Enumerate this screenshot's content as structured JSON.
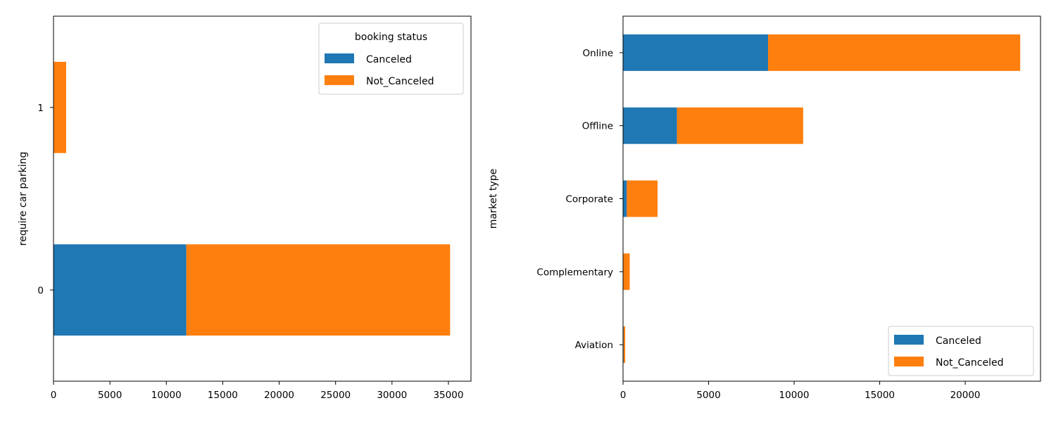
{
  "colors": {
    "Canceled": "#1f77b4",
    "Not_Canceled": "#ff7f0e"
  },
  "chart_data": [
    {
      "type": "bar",
      "orientation": "horizontal",
      "stacked": true,
      "categories": [
        "0",
        "1"
      ],
      "series": [
        {
          "name": "Canceled",
          "values": [
            11771,
            0
          ]
        },
        {
          "name": "Not_Canceled",
          "values": [
            23380,
            1124
          ]
        }
      ],
      "title": "",
      "xlabel": "",
      "ylabel": "require car parking",
      "xlim": [
        0,
        37000
      ],
      "xticks": [
        0,
        5000,
        10000,
        15000,
        20000,
        25000,
        30000,
        35000
      ],
      "legend": {
        "title": "booking status",
        "position": "upper right"
      },
      "grid": false
    },
    {
      "type": "bar",
      "orientation": "horizontal",
      "stacked": true,
      "categories": [
        "Aviation",
        "Complementary",
        "Corporate",
        "Offline",
        "Online"
      ],
      "series": [
        {
          "name": "Canceled",
          "values": [
            37,
            0,
            220,
            3153,
            8475
          ]
        },
        {
          "name": "Not_Canceled",
          "values": [
            88,
            391,
            1797,
            7375,
            14739
          ]
        }
      ],
      "title": "",
      "xlabel": "",
      "ylabel": "market type",
      "xlim": [
        0,
        24400
      ],
      "xticks": [
        0,
        5000,
        10000,
        15000,
        20000
      ],
      "legend": {
        "title": "",
        "position": "lower right"
      },
      "grid": false
    }
  ]
}
